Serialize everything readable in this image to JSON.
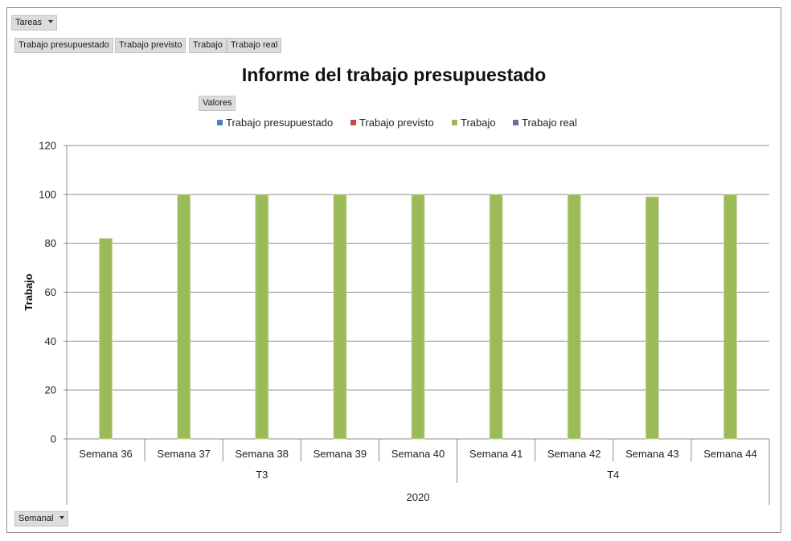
{
  "filters": {
    "tareas_label": "Tareas",
    "semanal_label": "Semanal",
    "valores_label": "Valores",
    "value_fields": [
      "Trabajo presupuestado",
      "Trabajo previsto",
      "Trabajo",
      "Trabajo real"
    ]
  },
  "chart_data": {
    "type": "bar",
    "title": "Informe del trabajo presupuestado",
    "ylabel": "Trabajo",
    "xlabel": "",
    "ylim": [
      0,
      120
    ],
    "yticks": [
      0,
      20,
      40,
      60,
      80,
      100,
      120
    ],
    "grid": true,
    "legend_position": "top",
    "categories": [
      "Semana 36",
      "Semana 37",
      "Semana 38",
      "Semana 39",
      "Semana 40",
      "Semana 41",
      "Semana 42",
      "Semana 43",
      "Semana 44"
    ],
    "category_groups": [
      {
        "label": "T3",
        "categories": [
          "Semana 36",
          "Semana 37",
          "Semana 38",
          "Semana 39",
          "Semana 40"
        ]
      },
      {
        "label": "T4",
        "categories": [
          "Semana 41",
          "Semana 42",
          "Semana 43",
          "Semana 44"
        ]
      }
    ],
    "year_label": "2020",
    "series": [
      {
        "name": "Trabajo presupuestado",
        "color": "#4f81bd",
        "values": [
          0,
          0,
          0,
          0,
          0,
          0,
          0,
          0,
          0
        ]
      },
      {
        "name": "Trabajo previsto",
        "color": "#c0504d",
        "values": [
          0,
          0,
          0,
          0,
          0,
          0,
          0,
          0,
          0
        ]
      },
      {
        "name": "Trabajo",
        "color": "#9bbb59",
        "values": [
          82,
          100,
          100,
          100,
          100,
          100,
          100,
          99,
          100
        ]
      },
      {
        "name": "Trabajo real",
        "color": "#8064a2",
        "values": [
          0,
          0,
          0,
          0,
          0,
          0,
          0,
          0,
          0
        ]
      }
    ]
  }
}
